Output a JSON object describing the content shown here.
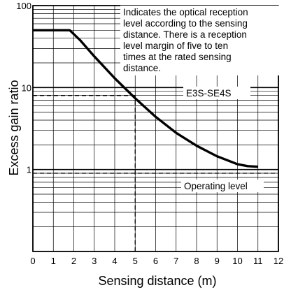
{
  "chart_data": {
    "type": "line",
    "xlabel": "Sensing distance (m)",
    "ylabel": "Excess gain ratio",
    "xlim": [
      0,
      12
    ],
    "ylim": [
      0.1,
      100
    ],
    "yscale": "log",
    "x_ticks": [
      "0",
      "1",
      "2",
      "3",
      "4",
      "5",
      "6",
      "7",
      "8",
      "9",
      "10",
      "11",
      "12"
    ],
    "y_ticks": [
      "100",
      "10",
      "1"
    ],
    "grid": true,
    "series": [
      {
        "name": "E3S-SE4S",
        "points": [
          [
            0,
            50
          ],
          [
            1.8,
            50
          ],
          [
            2.3,
            38
          ],
          [
            3.0,
            24
          ],
          [
            4.0,
            13
          ],
          [
            5.0,
            7.4
          ],
          [
            6.0,
            4.4
          ],
          [
            7.0,
            2.8
          ],
          [
            8.0,
            1.95
          ],
          [
            9.0,
            1.45
          ],
          [
            10.0,
            1.16
          ],
          [
            10.5,
            1.1
          ],
          [
            11.0,
            1.08
          ]
        ]
      }
    ],
    "reference_lines": [
      {
        "type": "horizontal",
        "y": 8,
        "x_end": 5,
        "style": "dashed"
      },
      {
        "type": "vertical",
        "x": 5,
        "y_end": 8,
        "style": "dashed"
      },
      {
        "type": "horizontal",
        "y": 0.9,
        "style": "dashed"
      }
    ],
    "annotations": {
      "note": [
        "Indicates the optical reception",
        "level according to the sensing",
        "distance. There is a reception",
        "level margin of five to ten",
        "times at the rated sensing",
        "distance."
      ],
      "curve_label": "E3S-SE4S",
      "operating_label": "Operating level"
    }
  }
}
